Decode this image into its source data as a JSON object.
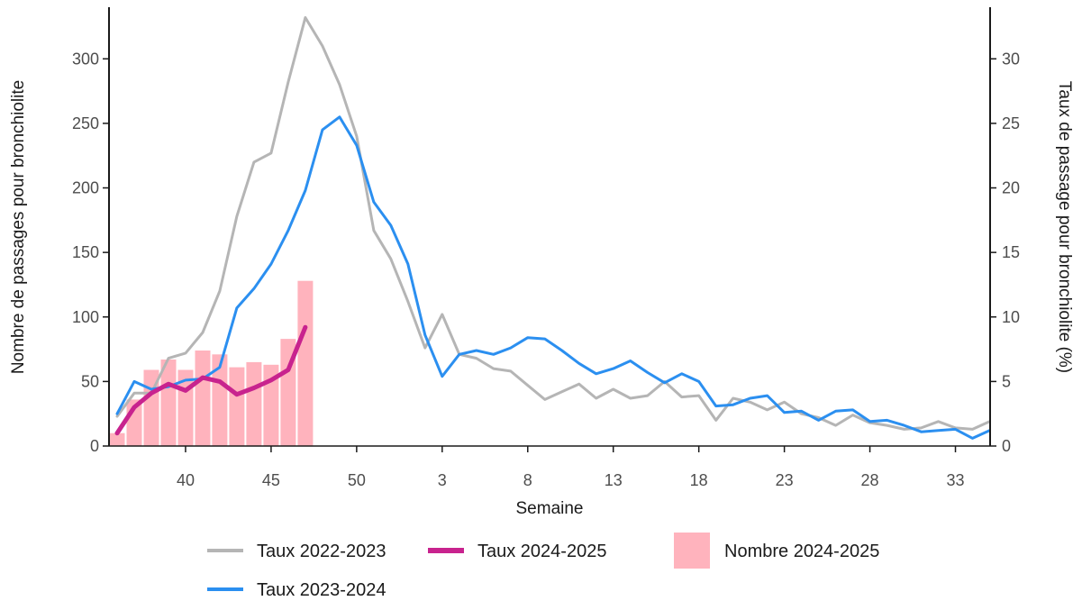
{
  "chart_data": {
    "type": "bar+line",
    "xlabel": "Semaine",
    "ylabel_left": "Nombre de passages pour bronchiolite",
    "ylabel_right": "Taux de passage pour bronchiolite (%)",
    "ylim_left": [
      0,
      340
    ],
    "ylim_right": [
      0,
      34
    ],
    "left_ticks": [
      0,
      50,
      100,
      150,
      200,
      250,
      300
    ],
    "right_ticks": [
      0,
      5,
      10,
      15,
      20,
      25,
      30
    ],
    "x_ticks": [
      "40",
      "45",
      "50",
      "3",
      "8",
      "13",
      "18",
      "23",
      "28",
      "33"
    ],
    "weeks": [
      "36",
      "37",
      "38",
      "39",
      "40",
      "41",
      "42",
      "43",
      "44",
      "45",
      "46",
      "47",
      "48",
      "49",
      "50",
      "51",
      "52",
      "1",
      "2",
      "3",
      "4",
      "5",
      "6",
      "7",
      "8",
      "9",
      "10",
      "11",
      "12",
      "13",
      "14",
      "15",
      "16",
      "17",
      "18",
      "19",
      "20",
      "21",
      "22",
      "23",
      "24",
      "25",
      "26",
      "27",
      "28",
      "29",
      "30",
      "31",
      "32",
      "33",
      "34",
      "35"
    ],
    "bars": {
      "name": "Nombre 2024-2025",
      "color": "#ffb3bd",
      "values": [
        10,
        36,
        59,
        67,
        59,
        74,
        71,
        61,
        65,
        63,
        83,
        128
      ]
    },
    "series": [
      {
        "name": "Taux 2022-2023",
        "color": "#b5b5b5",
        "values": [
          2.3,
          4.1,
          4.1,
          6.8,
          7.2,
          8.8,
          12,
          17.8,
          22,
          22.7,
          28.2,
          33.2,
          31,
          28,
          24,
          16.7,
          14.5,
          11.2,
          7.6,
          10.2,
          7.1,
          6.8,
          6.0,
          5.8,
          4.7,
          3.6,
          4.2,
          4.8,
          3.7,
          4.4,
          3.7,
          3.9,
          5.0,
          3.8,
          3.9,
          2.0,
          3.7,
          3.4,
          2.8,
          3.4,
          2.5,
          2.2,
          1.6,
          2.4,
          1.8,
          1.6,
          1.3,
          1.4,
          1.9,
          1.4,
          1.3,
          1.9
        ]
      },
      {
        "name": "Taux 2023-2024",
        "color": "#2b8ff0",
        "values": [
          2.5,
          5.0,
          4.4,
          4.6,
          5.1,
          5.2,
          6.1,
          10.7,
          12.2,
          14.1,
          16.7,
          19.8,
          24.5,
          25.5,
          23.3,
          18.9,
          17.1,
          14.1,
          8.6,
          5.4,
          7.1,
          7.4,
          7.1,
          7.6,
          8.4,
          8.3,
          7.4,
          6.4,
          5.6,
          6.0,
          6.6,
          5.7,
          4.9,
          5.6,
          5.0,
          3.1,
          3.2,
          3.7,
          3.9,
          2.6,
          2.7,
          2.0,
          2.7,
          2.8,
          1.9,
          2.0,
          1.6,
          1.1,
          1.2,
          1.3,
          0.6,
          1.2
        ]
      },
      {
        "name": "Taux 2024-2025",
        "color": "#c8238e",
        "values": [
          1.0,
          3.0,
          4.1,
          4.8,
          4.3,
          5.3,
          5.0,
          4.0,
          4.5,
          5.1,
          5.9,
          9.2
        ]
      }
    ],
    "legend": [
      {
        "label": "Taux 2022-2023",
        "kind": "line",
        "color": "#b5b5b5"
      },
      {
        "label": "Taux 2024-2025",
        "kind": "line",
        "color": "#c8238e"
      },
      {
        "label": "Nombre 2024-2025",
        "kind": "bar",
        "color": "#ffb3bd"
      },
      {
        "label": "Taux 2023-2024",
        "kind": "line",
        "color": "#2b8ff0"
      }
    ],
    "legend_position": "bottom"
  }
}
